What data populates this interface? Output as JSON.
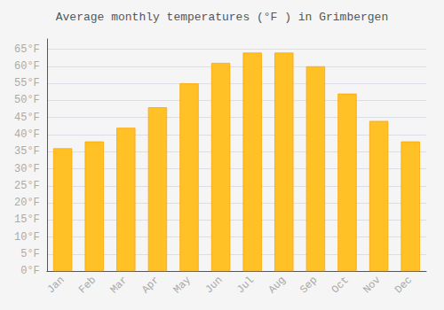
{
  "chart_data": {
    "type": "bar",
    "title": "Average monthly temperatures (°F ) in Grimbergen",
    "categories": [
      "Jan",
      "Feb",
      "Mar",
      "Apr",
      "May",
      "Jun",
      "Jul",
      "Aug",
      "Sep",
      "Oct",
      "Nov",
      "Dec"
    ],
    "values": [
      36,
      38,
      42,
      48,
      55,
      61,
      64,
      64,
      60,
      52,
      44,
      38
    ],
    "color": "#FFC125",
    "ylim": [
      0,
      68
    ],
    "yticks": [
      {
        "value": 0,
        "label": "0°F"
      },
      {
        "value": 5,
        "label": "5°F"
      },
      {
        "value": 10,
        "label": "10°F"
      },
      {
        "value": 15,
        "label": "15°F"
      },
      {
        "value": 20,
        "label": "20°F"
      },
      {
        "value": 25,
        "label": "25°F"
      },
      {
        "value": 30,
        "label": "30°F"
      },
      {
        "value": 35,
        "label": "35°F"
      },
      {
        "value": 40,
        "label": "40°F"
      },
      {
        "value": 45,
        "label": "45°F"
      },
      {
        "value": 50,
        "label": "50°F"
      },
      {
        "value": 55,
        "label": "55°F"
      },
      {
        "value": 60,
        "label": "60°F"
      },
      {
        "value": 65,
        "label": "65°F"
      }
    ],
    "grid": true
  }
}
